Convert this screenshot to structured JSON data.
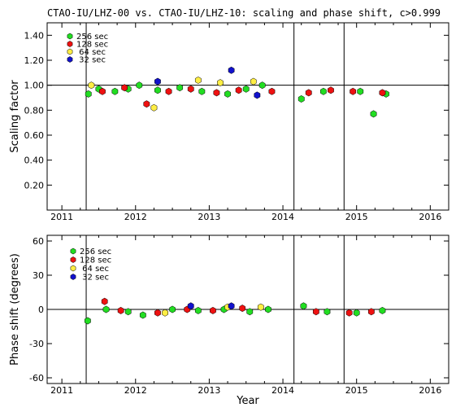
{
  "chart_data": {
    "title": "CTAO-IU/LHZ-00 vs. CTAO-IU/LHZ-10: scaling and phase shift, c>0.999",
    "xlabel": "Year",
    "x_ticks": [
      "2011",
      "2012",
      "2013",
      "2014",
      "2015",
      "2016"
    ],
    "xlim": [
      2010.8,
      2016.25
    ],
    "vertical_lines": [
      2011.33,
      2014.15,
      2014.83
    ],
    "legend": [
      {
        "label": "256 sec",
        "color": "#22dd22"
      },
      {
        "label": "128 sec",
        "color": "#ee1111"
      },
      {
        "label": " 64 sec",
        "color": "#ffee44"
      },
      {
        "label": " 32 sec",
        "color": "#1111cc"
      }
    ],
    "panels": [
      {
        "type": "scatter",
        "ylabel": "Scaling factor",
        "ylim": [
          0.0,
          1.5
        ],
        "y_ticks": [
          "0.20",
          "0.40",
          "0.60",
          "0.80",
          "1.00",
          "1.20",
          "1.40"
        ],
        "reference_line": 1.0,
        "series": [
          {
            "name": "256 sec",
            "x": [
              2011.36,
              2011.5,
              2011.72,
              2011.9,
              2012.05,
              2012.3,
              2012.6,
              2012.9,
              2013.25,
              2013.5,
              2013.72,
              2014.25,
              2014.55,
              2015.05,
              2015.23,
              2015.4
            ],
            "y": [
              0.93,
              0.97,
              0.95,
              0.97,
              1.0,
              0.96,
              0.98,
              0.95,
              0.93,
              0.97,
              1.0,
              0.89,
              0.95,
              0.95,
              0.77,
              0.93
            ]
          },
          {
            "name": "128 sec",
            "x": [
              2011.55,
              2011.85,
              2012.15,
              2012.45,
              2012.75,
              2013.1,
              2013.4,
              2013.85,
              2014.35,
              2014.65,
              2014.95,
              2015.35
            ],
            "y": [
              0.95,
              0.98,
              0.85,
              0.95,
              0.97,
              0.94,
              0.96,
              0.95,
              0.94,
              0.96,
              0.95,
              0.94
            ]
          },
          {
            "name": "64 sec",
            "x": [
              2011.4,
              2012.25,
              2012.85,
              2013.15,
              2013.6
            ],
            "y": [
              1.0,
              0.82,
              1.04,
              1.02,
              1.03
            ]
          },
          {
            "name": "32 sec",
            "x": [
              2012.3,
              2013.3,
              2013.65
            ],
            "y": [
              1.03,
              1.12,
              0.92
            ]
          }
        ]
      },
      {
        "type": "scatter",
        "ylabel": "Phase shift (degrees)",
        "ylim": [
          -65,
          65
        ],
        "y_ticks": [
          "-60",
          "-30",
          "0",
          "30",
          "60"
        ],
        "reference_line": 0,
        "series": [
          {
            "name": "256 sec",
            "x": [
              2011.35,
              2011.6,
              2011.9,
              2012.1,
              2012.5,
              2012.85,
              2013.2,
              2013.55,
              2013.8,
              2014.28,
              2014.6,
              2015.0,
              2015.35
            ],
            "y": [
              -10,
              0,
              -2,
              -5,
              0,
              -1,
              0,
              -2,
              0,
              3,
              -2,
              -3,
              -1
            ]
          },
          {
            "name": "128 sec",
            "x": [
              2011.58,
              2011.8,
              2012.3,
              2012.7,
              2013.05,
              2013.45,
              2014.45,
              2014.9,
              2015.2
            ],
            "y": [
              7,
              -1,
              -3,
              0,
              -1,
              1,
              -2,
              -3,
              -2
            ]
          },
          {
            "name": "64 sec",
            "x": [
              2012.4,
              2013.25,
              2013.7
            ],
            "y": [
              -3,
              2,
              2
            ]
          },
          {
            "name": "32 sec",
            "x": [
              2012.75,
              2013.3
            ],
            "y": [
              3,
              3
            ]
          }
        ]
      }
    ]
  }
}
